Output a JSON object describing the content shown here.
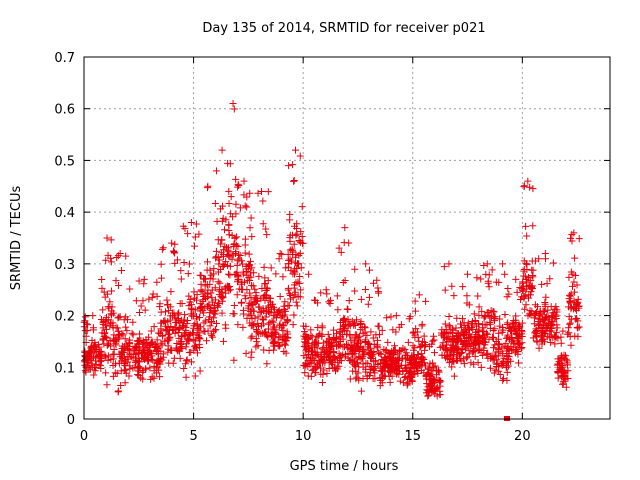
{
  "chart_data": {
    "type": "scatter",
    "title": "Day 135 of 2014, SRMTID for receiver p021",
    "xlabel": "GPS time / hours",
    "ylabel": "SRMTID / TECUs",
    "xlim": [
      0,
      24
    ],
    "ylim": [
      0,
      0.7
    ],
    "xticks": [
      0,
      5,
      10,
      15,
      20
    ],
    "xtick_labels": [
      "0",
      "5",
      "10",
      "15",
      "20"
    ],
    "yticks": [
      0,
      0.1,
      0.2,
      0.3,
      0.4,
      0.5,
      0.6,
      0.7
    ],
    "ytick_labels": [
      "0",
      "0.1",
      "0.2",
      "0.3",
      "0.4",
      "0.5",
      "0.6",
      "0.7"
    ],
    "grid": true,
    "legend": "none",
    "marker": "+",
    "marker_color": "#e8000b",
    "outlier": {
      "x": 19.3,
      "y": 0.0
    },
    "series": [
      {
        "name": "SRMTID",
        "segments": [
          {
            "x_start": 0.0,
            "x_end": 0.8,
            "y_min": 0.07,
            "y_max": 0.17,
            "y_spike": 0.2
          },
          {
            "x_start": 0.8,
            "x_end": 1.3,
            "y_min": 0.05,
            "y_max": 0.3,
            "y_spike": 0.35
          },
          {
            "x_start": 1.3,
            "x_end": 2.0,
            "y_min": 0.03,
            "y_max": 0.25,
            "y_spike": 0.32
          },
          {
            "x_start": 2.0,
            "x_end": 3.5,
            "y_min": 0.05,
            "y_max": 0.2,
            "y_spike": 0.27
          },
          {
            "x_start": 3.5,
            "x_end": 4.5,
            "y_min": 0.08,
            "y_max": 0.26,
            "y_spike": 0.34
          },
          {
            "x_start": 4.5,
            "x_end": 5.3,
            "y_min": 0.06,
            "y_max": 0.28,
            "y_spike": 0.38
          },
          {
            "x_start": 5.3,
            "x_end": 6.0,
            "y_min": 0.12,
            "y_max": 0.35,
            "y_spike": 0.45
          },
          {
            "x_start": 6.0,
            "x_end": 6.6,
            "y_min": 0.12,
            "y_max": 0.45,
            "y_spike": 0.52
          },
          {
            "x_start": 6.6,
            "x_end": 7.0,
            "y_min": 0.1,
            "y_max": 0.55,
            "y_spike": 0.61
          },
          {
            "x_start": 7.0,
            "x_end": 7.6,
            "y_min": 0.12,
            "y_max": 0.4,
            "y_spike": 0.46
          },
          {
            "x_start": 7.6,
            "x_end": 8.6,
            "y_min": 0.08,
            "y_max": 0.33,
            "y_spike": 0.44
          },
          {
            "x_start": 8.6,
            "x_end": 9.3,
            "y_min": 0.1,
            "y_max": 0.26,
            "y_spike": 0.32
          },
          {
            "x_start": 9.3,
            "x_end": 10.0,
            "y_min": 0.15,
            "y_max": 0.45,
            "y_spike": 0.52
          },
          {
            "x_start": 10.0,
            "x_end": 10.5,
            "y_min": 0.04,
            "y_max": 0.22,
            "y_spike": 0.28
          },
          {
            "x_start": 10.5,
            "x_end": 11.6,
            "y_min": 0.06,
            "y_max": 0.2,
            "y_spike": 0.25
          },
          {
            "x_start": 11.6,
            "x_end": 12.2,
            "y_min": 0.06,
            "y_max": 0.25,
            "y_spike": 0.37
          },
          {
            "x_start": 12.2,
            "x_end": 13.5,
            "y_min": 0.04,
            "y_max": 0.22,
            "y_spike": 0.3
          },
          {
            "x_start": 13.5,
            "x_end": 15.0,
            "y_min": 0.05,
            "y_max": 0.16,
            "y_spike": 0.2
          },
          {
            "x_start": 15.0,
            "x_end": 15.6,
            "y_min": 0.06,
            "y_max": 0.2,
            "y_spike": 0.24
          },
          {
            "x_start": 15.6,
            "x_end": 16.3,
            "y_min": 0.02,
            "y_max": 0.12,
            "y_spike": 0.16
          },
          {
            "x_start": 16.3,
            "x_end": 17.0,
            "y_min": 0.06,
            "y_max": 0.22,
            "y_spike": 0.3
          },
          {
            "x_start": 17.0,
            "x_end": 18.0,
            "y_min": 0.08,
            "y_max": 0.22,
            "y_spike": 0.28
          },
          {
            "x_start": 18.0,
            "x_end": 18.8,
            "y_min": 0.08,
            "y_max": 0.25,
            "y_spike": 0.3
          },
          {
            "x_start": 18.8,
            "x_end": 19.4,
            "y_min": 0.04,
            "y_max": 0.22,
            "y_spike": 0.3
          },
          {
            "x_start": 19.4,
            "x_end": 20.0,
            "y_min": 0.1,
            "y_max": 0.22,
            "y_spike": 0.27
          },
          {
            "x_start": 20.0,
            "x_end": 20.5,
            "y_min": 0.15,
            "y_max": 0.35,
            "y_spike": 0.46
          },
          {
            "x_start": 20.5,
            "x_end": 21.6,
            "y_min": 0.12,
            "y_max": 0.25,
            "y_spike": 0.32
          },
          {
            "x_start": 21.6,
            "x_end": 22.1,
            "y_min": 0.05,
            "y_max": 0.14,
            "y_spike": 0.17
          },
          {
            "x_start": 22.1,
            "x_end": 22.6,
            "y_min": 0.12,
            "y_max": 0.3,
            "y_spike": 0.36
          }
        ]
      }
    ]
  }
}
